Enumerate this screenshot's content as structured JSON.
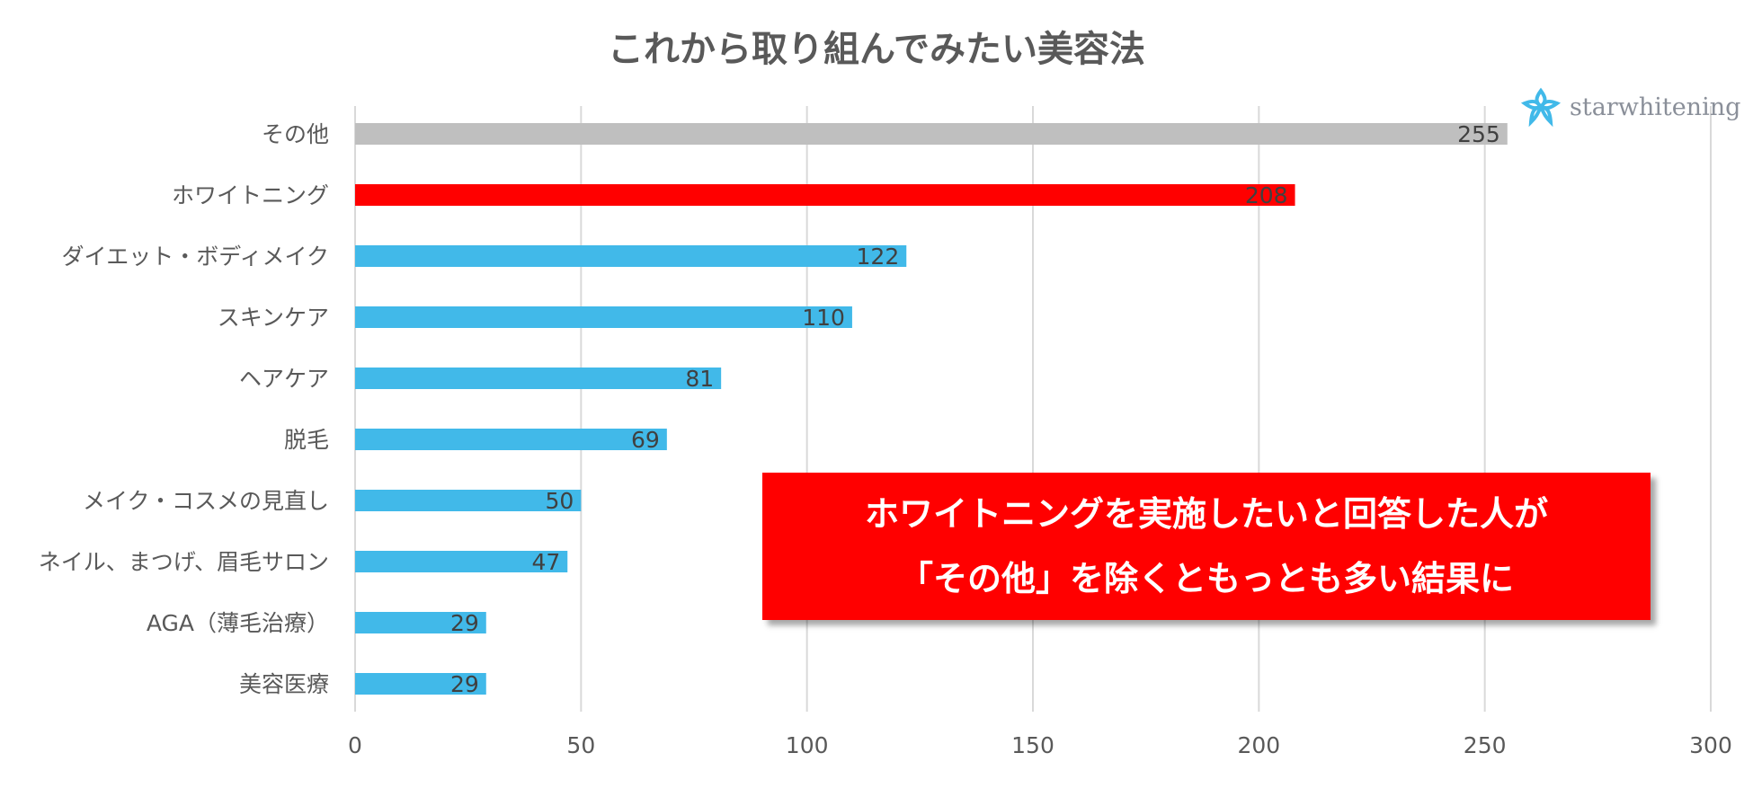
{
  "chart_data": {
    "type": "bar",
    "orientation": "horizontal",
    "title": "これから取り組んでみたい美容法",
    "categories": [
      "その他",
      "ホワイトニング",
      "ダイエット・ボディメイク",
      "スキンケア",
      "ヘアケア",
      "脱毛",
      "メイク・コスメの見直し",
      "ネイル、まつげ、眉毛サロン",
      "AGA（薄毛治療）",
      "美容医療"
    ],
    "values": [
      255,
      208,
      122,
      110,
      81,
      69,
      50,
      47,
      29,
      29
    ],
    "bar_colors": [
      "#bfbfbf",
      "#ff0000",
      "#41b9e9",
      "#41b9e9",
      "#41b9e9",
      "#41b9e9",
      "#41b9e9",
      "#41b9e9",
      "#41b9e9",
      "#41b9e9"
    ],
    "xlim": [
      0,
      300
    ],
    "xticks": [
      0,
      50,
      100,
      150,
      200,
      250,
      300
    ],
    "grid": true,
    "data_labels": true
  },
  "logo": {
    "text": "starwhitening",
    "icon": "star-flower-icon",
    "color": "#41b9e9"
  },
  "callout": {
    "line1": "ホワイトニングを実施したいと回答した人が",
    "line2": "「その他」を除くともっとも多い結果に",
    "background": "#ff0000"
  }
}
